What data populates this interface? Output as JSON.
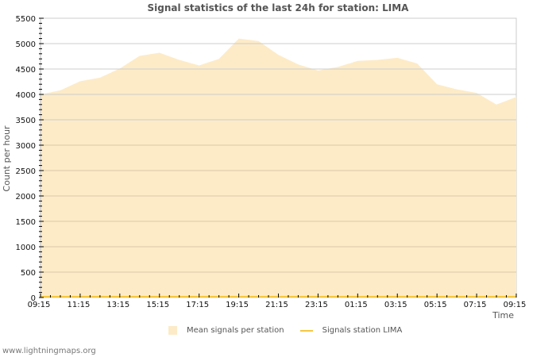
{
  "header": {
    "title": "Signal statistics of the last 24h for station: LIMA"
  },
  "axes": {
    "ylabel": "Count per hour",
    "xlabel": "Time",
    "yticks": [
      "0",
      "500",
      "1000",
      "1500",
      "2000",
      "2500",
      "3000",
      "3500",
      "4000",
      "4500",
      "5000",
      "5500"
    ],
    "xticks": [
      "09:15",
      "11:15",
      "13:15",
      "15:15",
      "17:15",
      "19:15",
      "21:15",
      "23:15",
      "01:15",
      "03:15",
      "05:15",
      "07:15",
      "09:15"
    ]
  },
  "legend": {
    "items": [
      {
        "label": "Mean signals per station",
        "color": "#fdebc8"
      },
      {
        "label": "Signals station LIMA",
        "color": "#f5c842"
      }
    ]
  },
  "footer": {
    "text": "www.lightningmaps.org"
  },
  "colors": {
    "area": "#fdebc8",
    "line": "#f5c842",
    "grid": "#d9c7a6",
    "frame": "#cccccc"
  },
  "chart_data": {
    "type": "area",
    "title": "Signal statistics of the last 24h for station: LIMA",
    "xlabel": "Time",
    "ylabel": "Count per hour",
    "ylim": [
      0,
      5500
    ],
    "grid": true,
    "legend_position": "bottom",
    "categories": [
      "09:15",
      "10:15",
      "11:15",
      "12:15",
      "13:15",
      "14:15",
      "15:15",
      "16:15",
      "17:15",
      "18:15",
      "19:15",
      "20:15",
      "21:15",
      "22:15",
      "23:15",
      "00:15",
      "01:15",
      "02:15",
      "03:15",
      "04:15",
      "05:15",
      "06:15",
      "07:15",
      "08:15",
      "09:15"
    ],
    "series": [
      {
        "name": "Mean signals per station",
        "values": [
          4000,
          4080,
          4260,
          4330,
          4510,
          4760,
          4820,
          4680,
          4570,
          4700,
          5100,
          5050,
          4780,
          4590,
          4470,
          4540,
          4660,
          4680,
          4720,
          4610,
          4200,
          4100,
          4030,
          3800,
          3950
        ]
      },
      {
        "name": "Signals station LIMA",
        "values": [
          0,
          0,
          0,
          0,
          0,
          0,
          0,
          0,
          0,
          0,
          0,
          0,
          0,
          0,
          0,
          0,
          0,
          0,
          0,
          0,
          0,
          0,
          0,
          0,
          0
        ]
      }
    ]
  }
}
